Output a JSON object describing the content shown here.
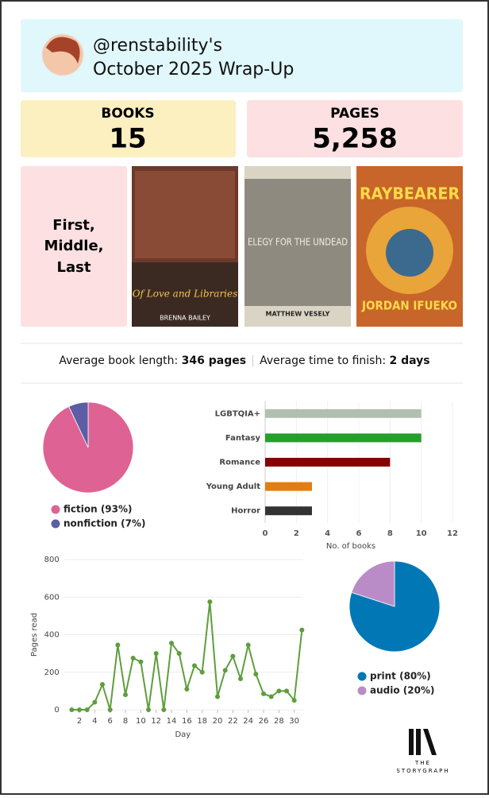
{
  "header": {
    "title": "@renstability's",
    "subtitle": "October 2025 Wrap-Up"
  },
  "stats": [
    {
      "label": "BOOKS",
      "value": "15"
    },
    {
      "label": "PAGES",
      "value": "5,258"
    }
  ],
  "featured": {
    "lines": [
      "First,",
      "Middle,",
      "Last"
    ]
  },
  "covers": [
    {
      "title": "Of Love and Libraries",
      "author": "BRENNA BAILEY"
    },
    {
      "title": "ELEGY FOR THE UNDEAD",
      "author": "MATTHEW VESELY"
    },
    {
      "title": "RAYBEARER",
      "author": "JORDAN IFUEKO"
    }
  ],
  "averages": {
    "length_label": "Average book length:",
    "length_value": "346 pages",
    "time_label": "Average time to finish:",
    "time_value": "2 days"
  },
  "chart_data": [
    {
      "type": "pie",
      "categories": [
        "fiction (93%)",
        "nonfiction (7%)"
      ],
      "values": [
        93,
        7
      ],
      "colors": [
        "#df6294",
        "#5c5da5"
      ]
    },
    {
      "type": "bar",
      "orientation": "horizontal",
      "categories": [
        "LGBTQIA+",
        "Fantasy",
        "Romance",
        "Young Adult",
        "Horror"
      ],
      "values": [
        10,
        10,
        8,
        3,
        3
      ],
      "colors": [
        "#b1bfb0",
        "#25a02b",
        "#860000",
        "#e27d12",
        "#333333"
      ],
      "xlim": [
        0,
        12
      ],
      "xticks": [
        0,
        2,
        4,
        6,
        8,
        10,
        12
      ],
      "xlabel": "No. of books"
    },
    {
      "type": "line",
      "x": [
        1,
        2,
        3,
        4,
        5,
        6,
        7,
        8,
        9,
        10,
        11,
        12,
        13,
        14,
        15,
        16,
        17,
        18,
        19,
        20,
        21,
        22,
        23,
        24,
        25,
        26,
        27,
        28,
        29,
        30,
        31
      ],
      "values": [
        0,
        0,
        0,
        40,
        135,
        0,
        345,
        80,
        275,
        255,
        0,
        300,
        0,
        355,
        300,
        110,
        235,
        200,
        575,
        70,
        210,
        285,
        165,
        345,
        190,
        85,
        70,
        100,
        100,
        50,
        425
      ],
      "color": "#5e9e3c",
      "xlim": [
        0,
        32
      ],
      "xticks": [
        2,
        4,
        6,
        8,
        10,
        12,
        14,
        16,
        18,
        20,
        22,
        24,
        26,
        28,
        30
      ],
      "ylim": [
        0,
        800
      ],
      "yticks": [
        0,
        200,
        400,
        600,
        800
      ],
      "xlabel": "Day",
      "ylabel": "Pages read",
      "grid": true
    },
    {
      "type": "pie",
      "categories": [
        "print (80%)",
        "audio (20%)"
      ],
      "values": [
        80,
        20
      ],
      "colors": [
        "#0178b5",
        "#b98cc7"
      ]
    }
  ],
  "logo": {
    "line1": "THE",
    "line2": "STORYGRAPH"
  }
}
